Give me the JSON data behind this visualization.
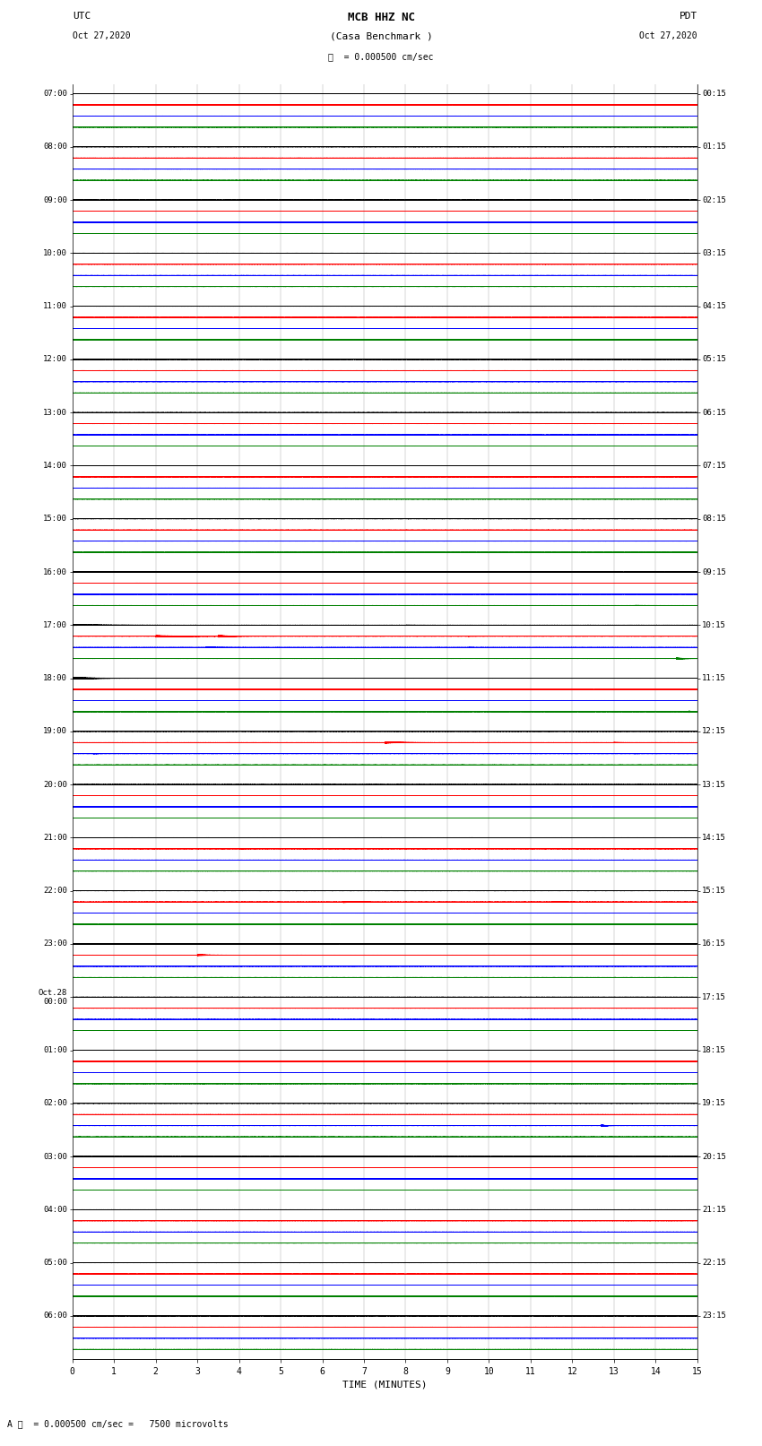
{
  "title_line1": "MCB HHZ NC",
  "title_line2": "(Casa Benchmark )",
  "scale_label": "= 0.000500 cm/sec",
  "bottom_label": "= 0.000500 cm/sec =   7500 microvolts",
  "utc_label": "UTC",
  "utc_date": "Oct 27,2020",
  "pdt_label": "PDT",
  "pdt_date": "Oct 27,2020",
  "xlabel": "TIME (MINUTES)",
  "left_times": [
    "07:00",
    "08:00",
    "09:00",
    "10:00",
    "11:00",
    "12:00",
    "13:00",
    "14:00",
    "15:00",
    "16:00",
    "17:00",
    "18:00",
    "19:00",
    "20:00",
    "21:00",
    "22:00",
    "23:00",
    "Oct.28\n00:00",
    "01:00",
    "02:00",
    "03:00",
    "04:00",
    "05:00",
    "06:00"
  ],
  "right_times": [
    "00:15",
    "01:15",
    "02:15",
    "03:15",
    "04:15",
    "05:15",
    "06:15",
    "07:15",
    "08:15",
    "09:15",
    "10:15",
    "11:15",
    "12:15",
    "13:15",
    "14:15",
    "15:15",
    "16:15",
    "17:15",
    "18:15",
    "19:15",
    "20:15",
    "21:15",
    "22:15",
    "23:15"
  ],
  "n_rows": 24,
  "n_minutes": 15,
  "sample_rate": 100,
  "bg_color": "#ffffff",
  "colors_cycle": [
    "black",
    "red",
    "blue",
    "green"
  ],
  "trace_amplitude": 0.09,
  "noise_amplitude": 0.012,
  "trace_sep": 0.21,
  "events": [
    {
      "row": 9,
      "trace": 0,
      "minute": 0.0,
      "amplitude": 0.6,
      "duration": 2.5,
      "note": "16:00 black extended noise"
    },
    {
      "row": 9,
      "trace": 1,
      "minute": 1.5,
      "amplitude": 0.5,
      "duration": 3.0,
      "note": "16:00 red noise burst"
    },
    {
      "row": 9,
      "trace": 1,
      "minute": 5.0,
      "amplitude": 0.3,
      "duration": 1.0,
      "note": "16:00 red small"
    },
    {
      "row": 9,
      "trace": 2,
      "minute": 3.5,
      "amplitude": 0.3,
      "duration": 1.0,
      "note": "16:00 blue small"
    },
    {
      "row": 9,
      "trace": 3,
      "minute": 13.5,
      "amplitude": 0.6,
      "duration": 1.5,
      "note": "16:00 green end burst"
    },
    {
      "row": 10,
      "trace": 0,
      "minute": 0.0,
      "amplitude": 1.5,
      "duration": 4.0,
      "note": "17:00 black start"
    },
    {
      "row": 10,
      "trace": 0,
      "minute": 8.0,
      "amplitude": 0.5,
      "duration": 1.5,
      "note": "17:00 black mid"
    },
    {
      "row": 10,
      "trace": 1,
      "minute": 2.0,
      "amplitude": 2.5,
      "duration": 3.0,
      "note": "17:00 red big"
    },
    {
      "row": 10,
      "trace": 1,
      "minute": 3.5,
      "amplitude": 3.5,
      "duration": 1.0,
      "note": "17:00 red peak"
    },
    {
      "row": 10,
      "trace": 1,
      "minute": 9.5,
      "amplitude": 0.5,
      "duration": 0.8,
      "note": "17:00 red aftershock"
    },
    {
      "row": 10,
      "trace": 2,
      "minute": 3.2,
      "amplitude": 1.0,
      "duration": 1.5,
      "note": "17:00 blue burst"
    },
    {
      "row": 10,
      "trace": 2,
      "minute": 9.5,
      "amplitude": 0.4,
      "duration": 0.8,
      "note": "17:00 blue small"
    },
    {
      "row": 10,
      "trace": 3,
      "minute": 14.5,
      "amplitude": 2.5,
      "duration": 0.8,
      "note": "17:00 green end"
    },
    {
      "row": 11,
      "trace": 0,
      "minute": 0.0,
      "amplitude": 3.0,
      "duration": 2.5,
      "note": "18:00 black start noisy"
    },
    {
      "row": 11,
      "trace": 3,
      "minute": 14.8,
      "amplitude": 3.0,
      "duration": 0.4,
      "note": "18:00 green end big"
    },
    {
      "row": 12,
      "trace": 1,
      "minute": 7.5,
      "amplitude": 2.5,
      "duration": 1.5,
      "note": "19:00 red big"
    },
    {
      "row": 12,
      "trace": 1,
      "minute": 13.0,
      "amplitude": 0.8,
      "duration": 0.8,
      "note": "19:00 red aftershock"
    },
    {
      "row": 12,
      "trace": 2,
      "minute": 0.5,
      "amplitude": 0.8,
      "duration": 0.5,
      "note": "19:00 blue small"
    },
    {
      "row": 12,
      "trace": 2,
      "minute": 6.8,
      "amplitude": 0.4,
      "duration": 0.5,
      "note": "19:00 blue mid"
    },
    {
      "row": 12,
      "trace": 2,
      "minute": 13.5,
      "amplitude": 0.5,
      "duration": 0.5,
      "note": "19:00 blue end"
    },
    {
      "row": 14,
      "trace": 1,
      "minute": 4.0,
      "amplitude": 0.6,
      "duration": 0.5,
      "note": "21:00 red small"
    },
    {
      "row": 15,
      "trace": 1,
      "minute": 6.5,
      "amplitude": 2.5,
      "duration": 1.0,
      "note": "22:00 red burst1"
    },
    {
      "row": 15,
      "trace": 1,
      "minute": 11.5,
      "amplitude": 2.0,
      "duration": 0.8,
      "note": "22:00 red burst2"
    },
    {
      "row": 15,
      "trace": 2,
      "minute": 6.8,
      "amplitude": 0.4,
      "duration": 0.5,
      "note": "22:00 blue small"
    },
    {
      "row": 16,
      "trace": 1,
      "minute": 3.0,
      "amplitude": 2.0,
      "duration": 1.2,
      "note": "23:00 red"
    },
    {
      "row": 16,
      "trace": 2,
      "minute": 11.5,
      "amplitude": 0.3,
      "duration": 0.3,
      "note": "23:00 blue tiny"
    },
    {
      "row": 19,
      "trace": 2,
      "minute": 12.7,
      "amplitude": 3.5,
      "duration": 0.4,
      "note": "02:00 blue spike"
    }
  ]
}
